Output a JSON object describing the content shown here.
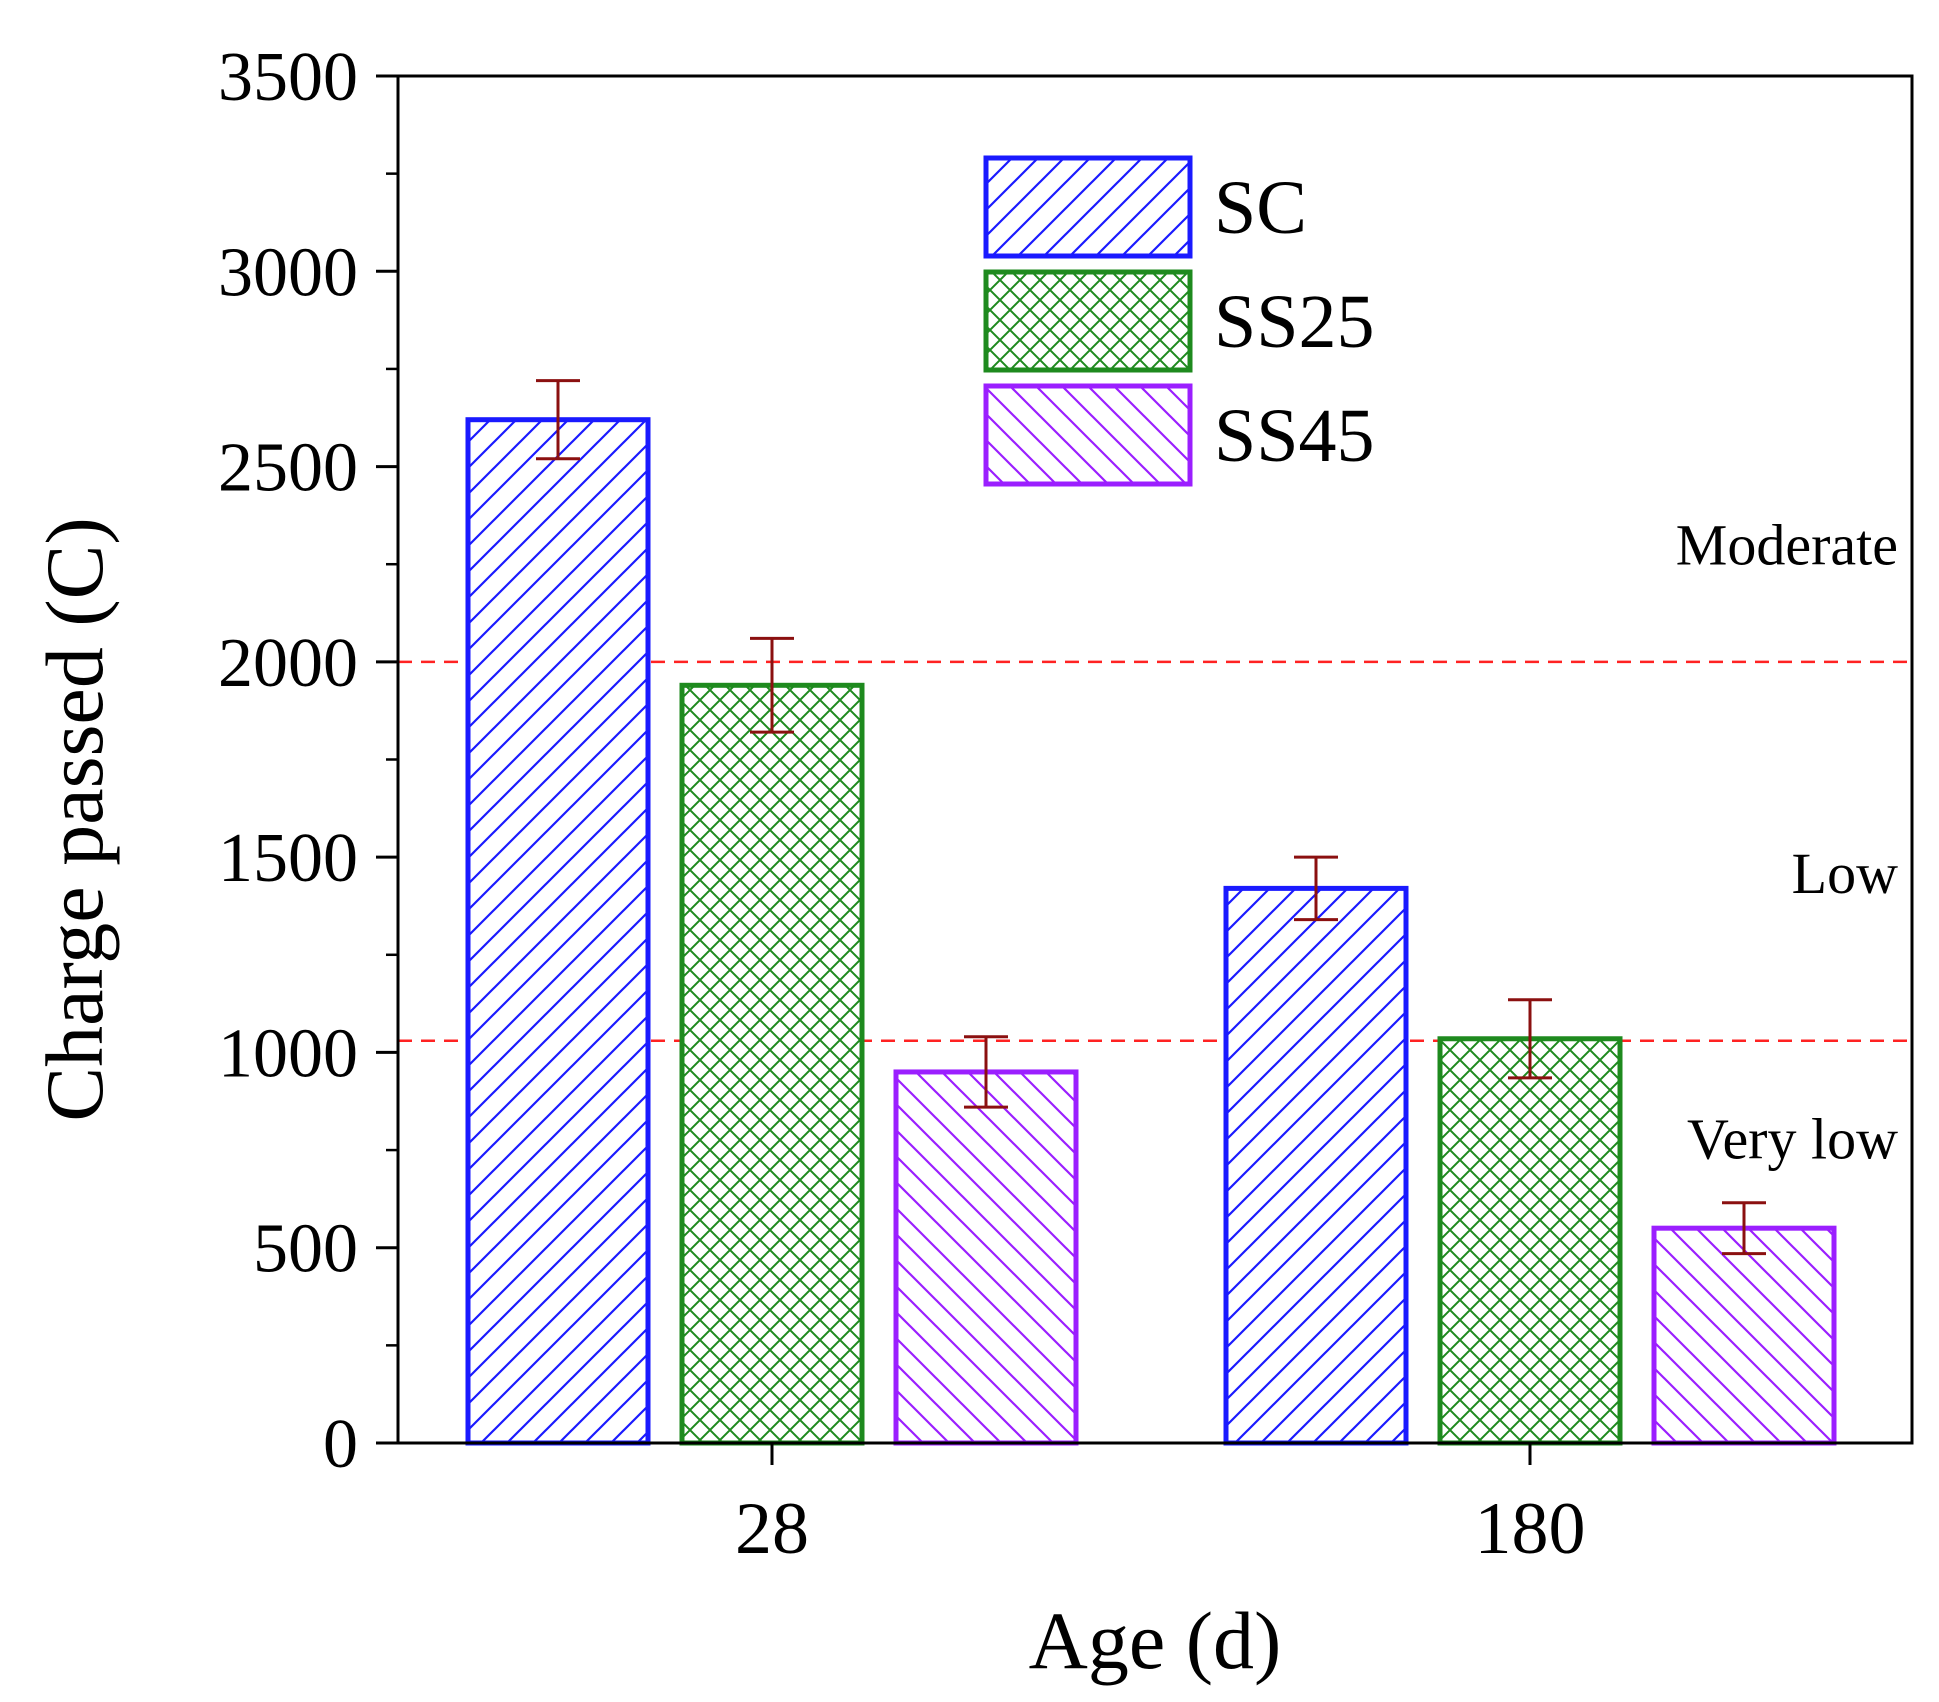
{
  "chart_data": {
    "type": "bar",
    "xlabel": "Age (d)",
    "ylabel": "Charge passed (C)",
    "ylim": [
      0,
      3500
    ],
    "yticks": [
      0,
      500,
      1000,
      1500,
      2000,
      2500,
      3000,
      3500
    ],
    "categories": [
      "28",
      "180"
    ],
    "series": [
      {
        "name": "SC",
        "values": [
          2620,
          1420
        ],
        "errors": [
          100,
          80
        ],
        "color": "#1a1aff",
        "pattern": "diag-up"
      },
      {
        "name": "SS25",
        "values": [
          1940,
          1035
        ],
        "errors": [
          120,
          100
        ],
        "color": "#1e8a1e",
        "pattern": "cross"
      },
      {
        "name": "SS45",
        "values": [
          950,
          550
        ],
        "errors": [
          90,
          65
        ],
        "color": "#9b1fff",
        "pattern": "diag-down"
      }
    ],
    "error_bar_color": "#8b1010",
    "reference_lines": [
      {
        "y": 2000,
        "color": "#ff2222",
        "style": "dashed"
      },
      {
        "y": 1030,
        "color": "#ff2222",
        "style": "dashed"
      }
    ],
    "annotations": [
      {
        "text": "Moderate",
        "y": 2300
      },
      {
        "text": "Low",
        "y": 1460
      },
      {
        "text": "Very low",
        "y": 780
      }
    ],
    "legend_position": "top-center",
    "grid": false
  }
}
